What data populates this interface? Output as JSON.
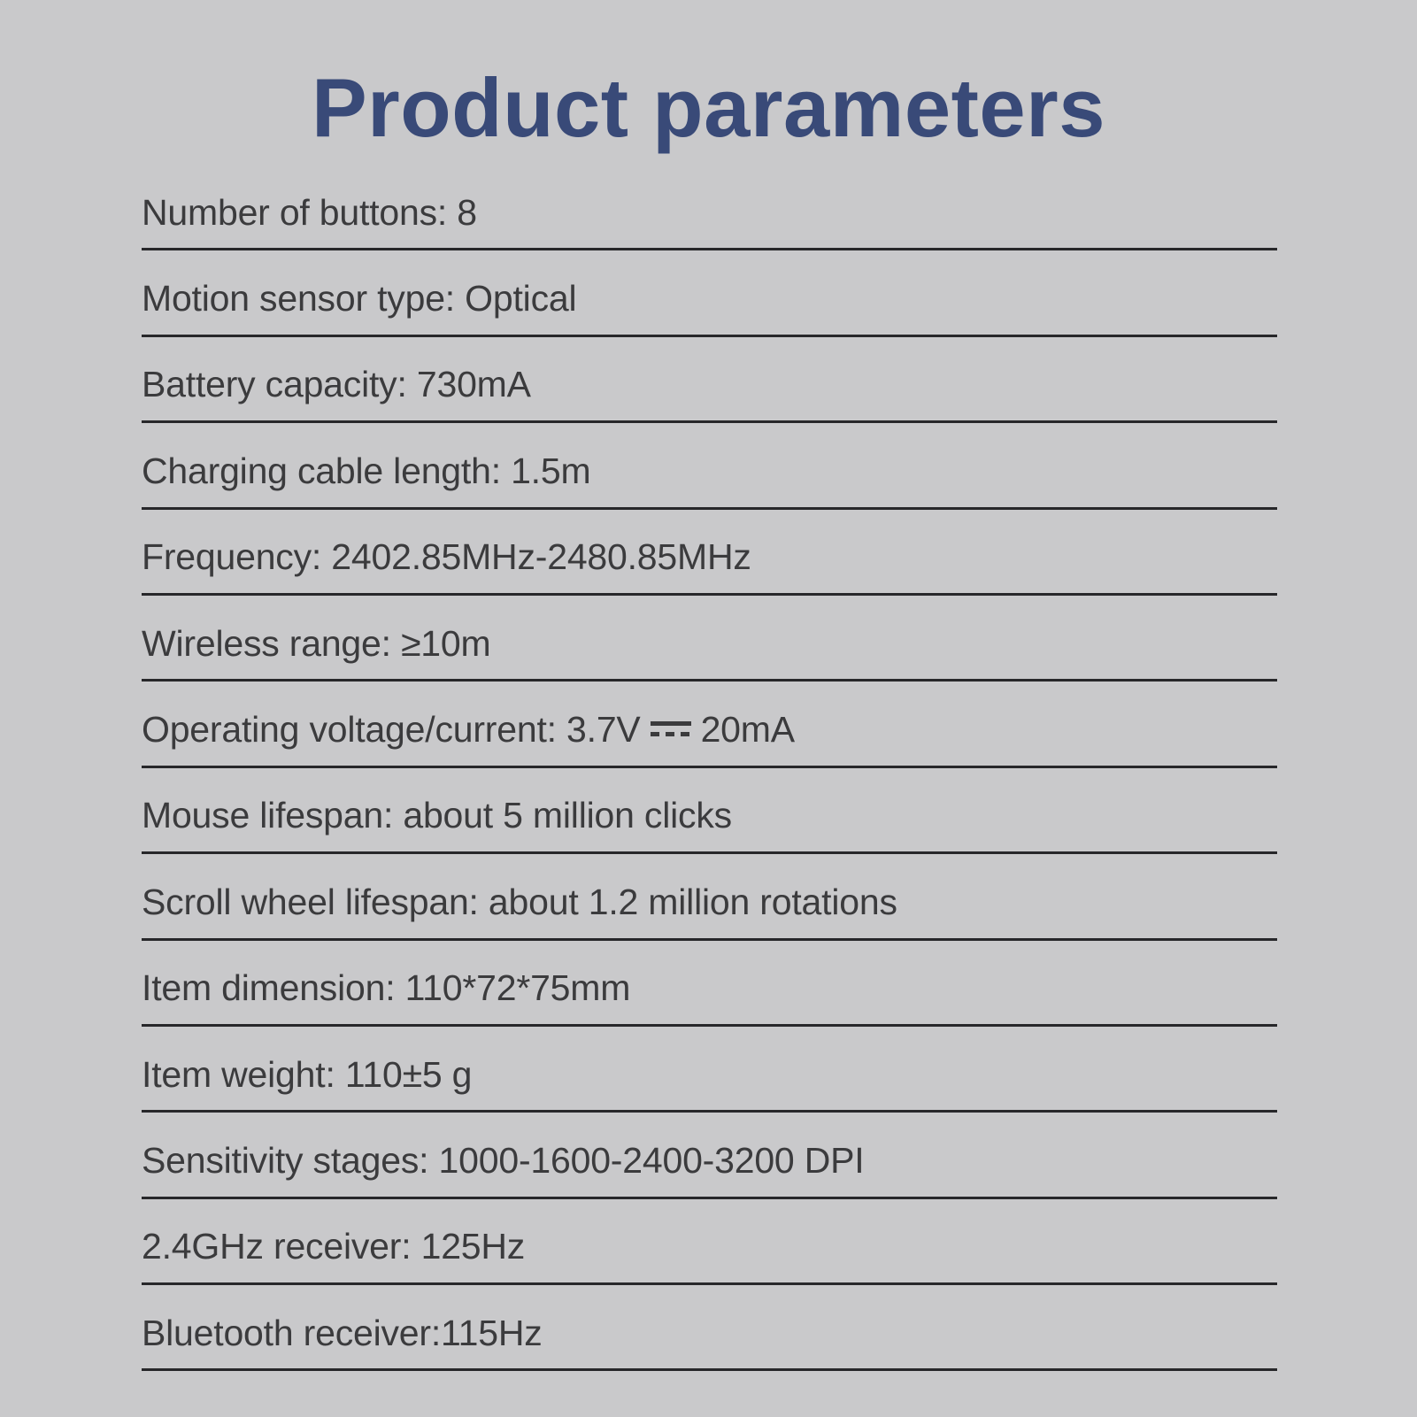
{
  "page": {
    "title": "Product parameters"
  },
  "colors": {
    "background": "#c9c9cb",
    "title": "#394a78",
    "text": "#3b3b3d",
    "divider": "#27272a"
  },
  "parameters": [
    {
      "text": "Number of buttons: 8"
    },
    {
      "text": "Motion sensor type: Optical"
    },
    {
      "text": "Battery capacity: 730mA"
    },
    {
      "text": "Charging cable length: 1.5m"
    },
    {
      "text": "Frequency: 2402.85MHz-2480.85MHz"
    },
    {
      "text": "Wireless range: ≥10m"
    },
    {
      "parts": [
        {
          "text": "Operating voltage/current: 3.7V"
        },
        {
          "icon": "dc-current-icon"
        },
        {
          "text": "20mA"
        }
      ]
    },
    {
      "text": "Mouse lifespan: about 5 million clicks"
    },
    {
      "text": "Scroll wheel lifespan: about 1.2 million rotations"
    },
    {
      "text": "Item dimension: 110*72*75mm"
    },
    {
      "text": "Item weight: 110±5 g"
    },
    {
      "text": "Sensitivity stages: 1000-1600-2400-3200 DPI"
    },
    {
      "text": "2.4GHz receiver: 125Hz"
    },
    {
      "text": "Bluetooth receiver:115Hz"
    }
  ]
}
